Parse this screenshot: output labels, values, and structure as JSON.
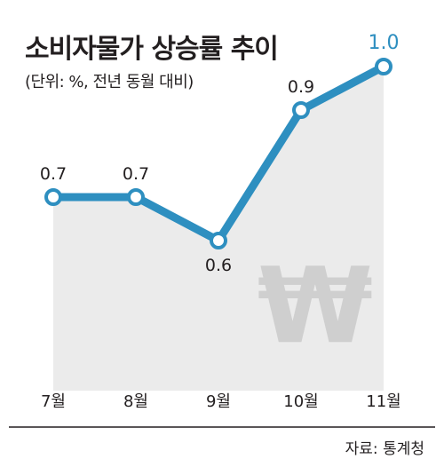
{
  "title": "소비자물가 상승률 추이",
  "subtitle": "(단위: %, 전년 동월 대비)",
  "source": "자료: 통계청",
  "watermark_icon": "won-sign-icon",
  "colors": {
    "line": "#2e8fc0",
    "area": "#ebebeb",
    "highlight_label": "#2e8fc0",
    "text": "#231f20",
    "watermark": "#cfcfcf"
  },
  "chart_data": {
    "type": "line",
    "title": "소비자물가 상승률 추이",
    "subtitle": "(단위: %, 전년 동월 대비)",
    "categories": [
      "7월",
      "8월",
      "9월",
      "10월",
      "11월"
    ],
    "series": [
      {
        "values": [
          0.7,
          0.7,
          0.6,
          0.9,
          1.0
        ],
        "labels": [
          "0.7",
          "0.7",
          "0.6",
          "0.9",
          "1.0"
        ]
      }
    ],
    "highlight_index": 4,
    "grid": false,
    "legend": "none"
  }
}
